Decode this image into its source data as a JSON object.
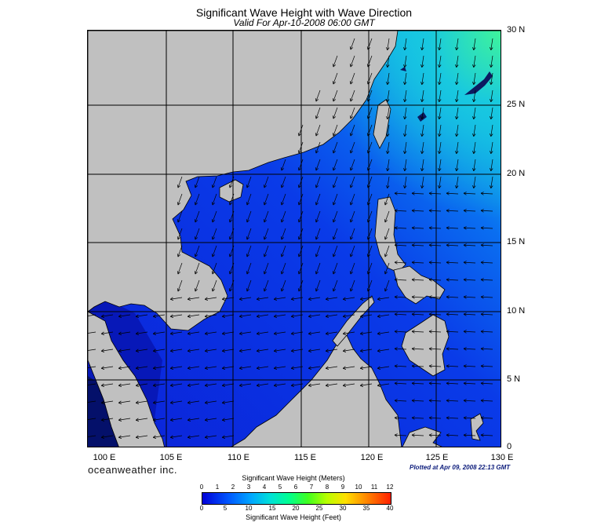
{
  "header": {
    "title": "Significant Wave Height with Wave Direction",
    "subtitle": "Valid For Apr-10-2008 06:00 GMT"
  },
  "map": {
    "lon_labels": [
      "100 E",
      "105 E",
      "110 E",
      "115 E",
      "120 E",
      "125 E",
      "130 E"
    ],
    "lat_labels": [
      "30 N",
      "25 N",
      "20 N",
      "15 N",
      "10 N",
      "5 N",
      "0"
    ],
    "land_color": "#c0c0c0",
    "sea_color_low": "#0a2be8",
    "sea_color_high": "#2ae09a",
    "grid": true
  },
  "footer": {
    "brand": "oceanweather inc.",
    "plotted": "Plotted at Apr 09, 2008 22:13 GMT"
  },
  "colorbar": {
    "title_meters": "Significant Wave Height (Meters)",
    "title_feet": "Significant Wave Height (Feet)",
    "meter_ticks": [
      "0",
      "1",
      "2",
      "3",
      "4",
      "5",
      "6",
      "7",
      "8",
      "9",
      "10",
      "11",
      "12"
    ],
    "feet_ticks": [
      "0",
      "5",
      "10",
      "15",
      "20",
      "25",
      "30",
      "35",
      "40"
    ]
  }
}
